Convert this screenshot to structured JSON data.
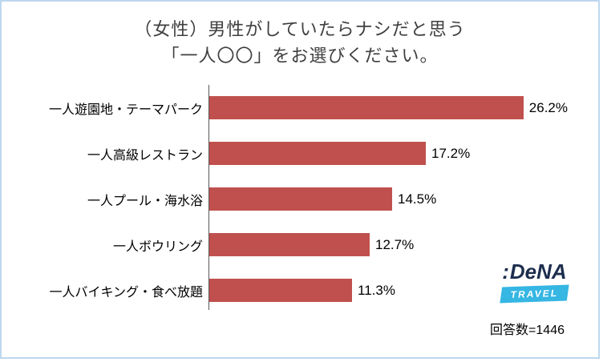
{
  "title": {
    "line1": "（女性）男性がしていたらナシだと思う",
    "line2": "「一人〇〇」をお選びください。"
  },
  "chart_data": {
    "type": "bar",
    "orientation": "horizontal",
    "categories": [
      "一人遊園地・テーマパーク",
      "一人高級レストラン",
      "一人プール・海水浴",
      "一人ボウリング",
      "一人バイキング・食べ放題"
    ],
    "values": [
      26.2,
      17.2,
      14.5,
      12.7,
      11.3
    ],
    "value_labels": [
      "26.2%",
      "17.2%",
      "14.5%",
      "12.7%",
      "11.3%"
    ],
    "bar_color": "#c0504d",
    "xlim": [
      0,
      28
    ],
    "grid": false,
    "legend": "none"
  },
  "logo": {
    "mark": ":",
    "name": "DeNA",
    "sub": "TRAVEL"
  },
  "footer": {
    "respondents": "回答数=1446"
  }
}
